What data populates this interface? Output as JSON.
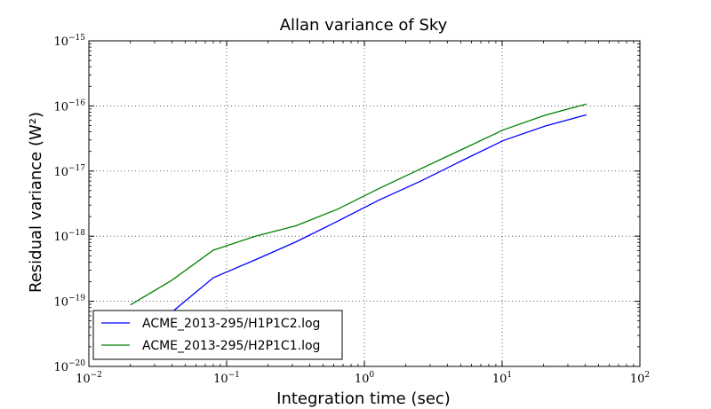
{
  "chart_data": {
    "type": "line",
    "title": "Allan variance of Sky",
    "xlabel": "Integration time (sec)",
    "ylabel": "Residual variance (W²)",
    "xscale": "log",
    "yscale": "log",
    "xlim": [
      0.01,
      100
    ],
    "ylim": [
      1e-20,
      1e-15
    ],
    "grid": true,
    "legend_position": "lower-left",
    "x_ticks": [
      {
        "base": "10",
        "exp": "−2",
        "value": 0.01
      },
      {
        "base": "10",
        "exp": "−1",
        "value": 0.1
      },
      {
        "base": "10",
        "exp": "0",
        "value": 1
      },
      {
        "base": "10",
        "exp": "1",
        "value": 10
      },
      {
        "base": "10",
        "exp": "2",
        "value": 100
      }
    ],
    "y_ticks": [
      {
        "base": "10",
        "exp": "−20",
        "value": 1e-20
      },
      {
        "base": "10",
        "exp": "−19",
        "value": 1e-19
      },
      {
        "base": "10",
        "exp": "−18",
        "value": 1e-18
      },
      {
        "base": "10",
        "exp": "−17",
        "value": 1e-17
      },
      {
        "base": "10",
        "exp": "−16",
        "value": 1e-16
      },
      {
        "base": "10",
        "exp": "−15",
        "value": 1e-15
      }
    ],
    "series": [
      {
        "name": "ACME_2013-295/H1P1C2.log",
        "color": "#0000ff",
        "x": [
          0.02,
          0.04,
          0.08,
          0.16,
          0.32,
          0.64,
          1.28,
          2.56,
          5.12,
          10.24,
          20.48,
          40.96
        ],
        "y": [
          3e-20,
          6.8e-20,
          2.3e-19,
          4.3e-19,
          8.2e-19,
          1.7e-18,
          3.6e-18,
          7e-18,
          1.45e-17,
          2.95e-17,
          4.9e-17,
          7.3e-17
        ]
      },
      {
        "name": "ACME_2013-295/H2P1C1.log",
        "color": "#008000",
        "x": [
          0.02,
          0.04,
          0.08,
          0.16,
          0.32,
          0.64,
          1.28,
          2.56,
          5.12,
          10.24,
          20.48,
          40.96
        ],
        "y": [
          8.8e-20,
          2.1e-19,
          6.1e-19,
          9.9e-19,
          1.45e-18,
          2.6e-18,
          5.4e-18,
          1.08e-17,
          2.15e-17,
          4.3e-17,
          7.2e-17,
          1.07e-16
        ]
      }
    ]
  }
}
